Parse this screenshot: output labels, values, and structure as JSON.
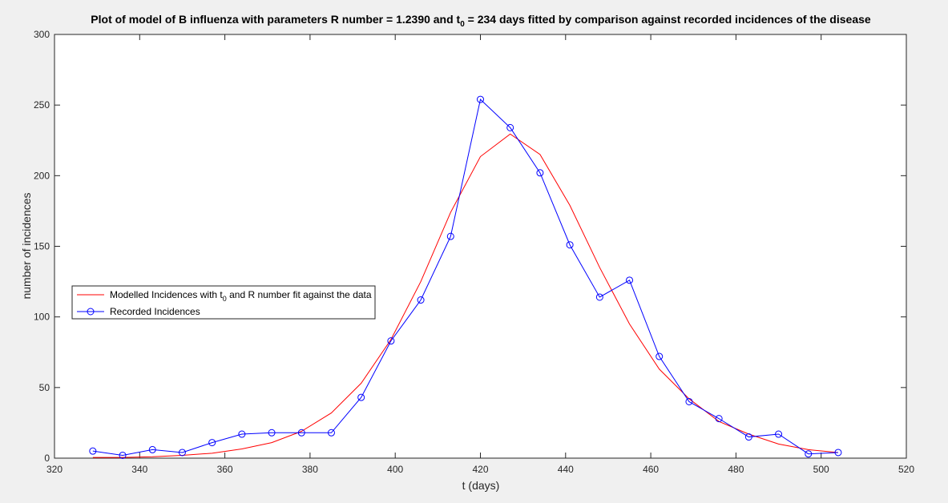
{
  "chart_data": {
    "type": "line",
    "title": {
      "before_sub": "Plot of model of B influenza with parameters R number = 1.2390 and t",
      "sub": "0",
      "after_sub": " = 234 days fitted by comparison against recorded incidences of the disease"
    },
    "xlabel": "t (days)",
    "ylabel": "number of incidences",
    "xlim": [
      320,
      520
    ],
    "ylim": [
      0,
      300
    ],
    "xticks": [
      320,
      340,
      360,
      380,
      400,
      420,
      440,
      460,
      480,
      500,
      520
    ],
    "yticks": [
      0,
      50,
      100,
      150,
      200,
      250,
      300
    ],
    "grid": false,
    "legend_position": "left",
    "series": [
      {
        "name": "Modelled Incidences with t0 and R number fit against the data",
        "legend_label": {
          "before_sub": "Modelled Incidences with t",
          "sub": "0",
          "after_sub": " and R number fit against the data"
        },
        "color": "#ff0000",
        "marker": "none",
        "x": [
          329,
          336,
          343,
          350,
          357,
          364,
          371,
          378,
          385,
          392,
          399,
          406,
          413,
          420,
          427,
          434,
          441,
          448,
          455,
          462,
          469,
          476,
          483,
          490,
          497,
          504
        ],
        "y": [
          0.5,
          0.5,
          1,
          2,
          3.5,
          6.5,
          11,
          19,
          32,
          53,
          84,
          125,
          174,
          213.5,
          229.5,
          215,
          179,
          135,
          95,
          63,
          42,
          26,
          17,
          10,
          6,
          4
        ]
      },
      {
        "name": "Recorded Incidences",
        "legend_label": {
          "before_sub": "Recorded Incidences",
          "sub": "",
          "after_sub": ""
        },
        "color": "#0000ff",
        "marker": "circle",
        "x": [
          329,
          336,
          343,
          350,
          357,
          364,
          371,
          378,
          385,
          392,
          399,
          406,
          413,
          420,
          427,
          434,
          441,
          448,
          455,
          462,
          469,
          476,
          483,
          490,
          497,
          504
        ],
        "y": [
          5,
          2,
          6,
          4,
          11,
          17,
          18,
          18,
          18,
          43,
          83,
          112,
          157,
          254,
          234,
          202,
          151,
          114,
          126,
          72,
          40,
          28,
          15,
          17,
          3,
          4
        ]
      }
    ]
  }
}
